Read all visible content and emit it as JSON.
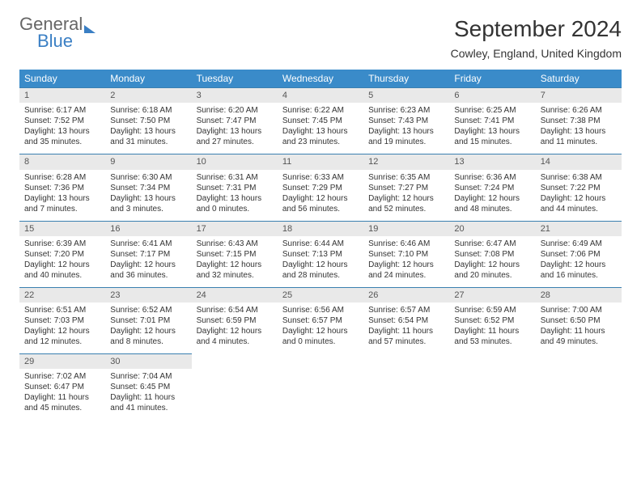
{
  "logo": {
    "line1": "General",
    "line2": "Blue"
  },
  "title": "September 2024",
  "location": "Cowley, England, United Kingdom",
  "colors": {
    "header_bg": "#3a8bc9",
    "header_text": "#ffffff",
    "row_border": "#3a7fb0",
    "daynum_bg": "#e9e9e9",
    "body_text": "#333333",
    "logo_gray": "#666666",
    "logo_blue": "#3a7fc4",
    "page_bg": "#ffffff"
  },
  "typography": {
    "title_fontsize": 28,
    "location_fontsize": 14,
    "dayheader_fontsize": 12,
    "cell_fontsize": 10,
    "font_family": "Arial"
  },
  "day_headers": [
    "Sunday",
    "Monday",
    "Tuesday",
    "Wednesday",
    "Thursday",
    "Friday",
    "Saturday"
  ],
  "days": [
    {
      "n": 1,
      "sunrise": "6:17 AM",
      "sunset": "7:52 PM",
      "daylight": "13 hours and 35 minutes."
    },
    {
      "n": 2,
      "sunrise": "6:18 AM",
      "sunset": "7:50 PM",
      "daylight": "13 hours and 31 minutes."
    },
    {
      "n": 3,
      "sunrise": "6:20 AM",
      "sunset": "7:47 PM",
      "daylight": "13 hours and 27 minutes."
    },
    {
      "n": 4,
      "sunrise": "6:22 AM",
      "sunset": "7:45 PM",
      "daylight": "13 hours and 23 minutes."
    },
    {
      "n": 5,
      "sunrise": "6:23 AM",
      "sunset": "7:43 PM",
      "daylight": "13 hours and 19 minutes."
    },
    {
      "n": 6,
      "sunrise": "6:25 AM",
      "sunset": "7:41 PM",
      "daylight": "13 hours and 15 minutes."
    },
    {
      "n": 7,
      "sunrise": "6:26 AM",
      "sunset": "7:38 PM",
      "daylight": "13 hours and 11 minutes."
    },
    {
      "n": 8,
      "sunrise": "6:28 AM",
      "sunset": "7:36 PM",
      "daylight": "13 hours and 7 minutes."
    },
    {
      "n": 9,
      "sunrise": "6:30 AM",
      "sunset": "7:34 PM",
      "daylight": "13 hours and 3 minutes."
    },
    {
      "n": 10,
      "sunrise": "6:31 AM",
      "sunset": "7:31 PM",
      "daylight": "13 hours and 0 minutes."
    },
    {
      "n": 11,
      "sunrise": "6:33 AM",
      "sunset": "7:29 PM",
      "daylight": "12 hours and 56 minutes."
    },
    {
      "n": 12,
      "sunrise": "6:35 AM",
      "sunset": "7:27 PM",
      "daylight": "12 hours and 52 minutes."
    },
    {
      "n": 13,
      "sunrise": "6:36 AM",
      "sunset": "7:24 PM",
      "daylight": "12 hours and 48 minutes."
    },
    {
      "n": 14,
      "sunrise": "6:38 AM",
      "sunset": "7:22 PM",
      "daylight": "12 hours and 44 minutes."
    },
    {
      "n": 15,
      "sunrise": "6:39 AM",
      "sunset": "7:20 PM",
      "daylight": "12 hours and 40 minutes."
    },
    {
      "n": 16,
      "sunrise": "6:41 AM",
      "sunset": "7:17 PM",
      "daylight": "12 hours and 36 minutes."
    },
    {
      "n": 17,
      "sunrise": "6:43 AM",
      "sunset": "7:15 PM",
      "daylight": "12 hours and 32 minutes."
    },
    {
      "n": 18,
      "sunrise": "6:44 AM",
      "sunset": "7:13 PM",
      "daylight": "12 hours and 28 minutes."
    },
    {
      "n": 19,
      "sunrise": "6:46 AM",
      "sunset": "7:10 PM",
      "daylight": "12 hours and 24 minutes."
    },
    {
      "n": 20,
      "sunrise": "6:47 AM",
      "sunset": "7:08 PM",
      "daylight": "12 hours and 20 minutes."
    },
    {
      "n": 21,
      "sunrise": "6:49 AM",
      "sunset": "7:06 PM",
      "daylight": "12 hours and 16 minutes."
    },
    {
      "n": 22,
      "sunrise": "6:51 AM",
      "sunset": "7:03 PM",
      "daylight": "12 hours and 12 minutes."
    },
    {
      "n": 23,
      "sunrise": "6:52 AM",
      "sunset": "7:01 PM",
      "daylight": "12 hours and 8 minutes."
    },
    {
      "n": 24,
      "sunrise": "6:54 AM",
      "sunset": "6:59 PM",
      "daylight": "12 hours and 4 minutes."
    },
    {
      "n": 25,
      "sunrise": "6:56 AM",
      "sunset": "6:57 PM",
      "daylight": "12 hours and 0 minutes."
    },
    {
      "n": 26,
      "sunrise": "6:57 AM",
      "sunset": "6:54 PM",
      "daylight": "11 hours and 57 minutes."
    },
    {
      "n": 27,
      "sunrise": "6:59 AM",
      "sunset": "6:52 PM",
      "daylight": "11 hours and 53 minutes."
    },
    {
      "n": 28,
      "sunrise": "7:00 AM",
      "sunset": "6:50 PM",
      "daylight": "11 hours and 49 minutes."
    },
    {
      "n": 29,
      "sunrise": "7:02 AM",
      "sunset": "6:47 PM",
      "daylight": "11 hours and 45 minutes."
    },
    {
      "n": 30,
      "sunrise": "7:04 AM",
      "sunset": "6:45 PM",
      "daylight": "11 hours and 41 minutes."
    }
  ],
  "labels": {
    "sunrise": "Sunrise:",
    "sunset": "Sunset:",
    "daylight": "Daylight:"
  },
  "layout": {
    "cols": 7,
    "start_weekday": 0,
    "total_days": 30
  }
}
